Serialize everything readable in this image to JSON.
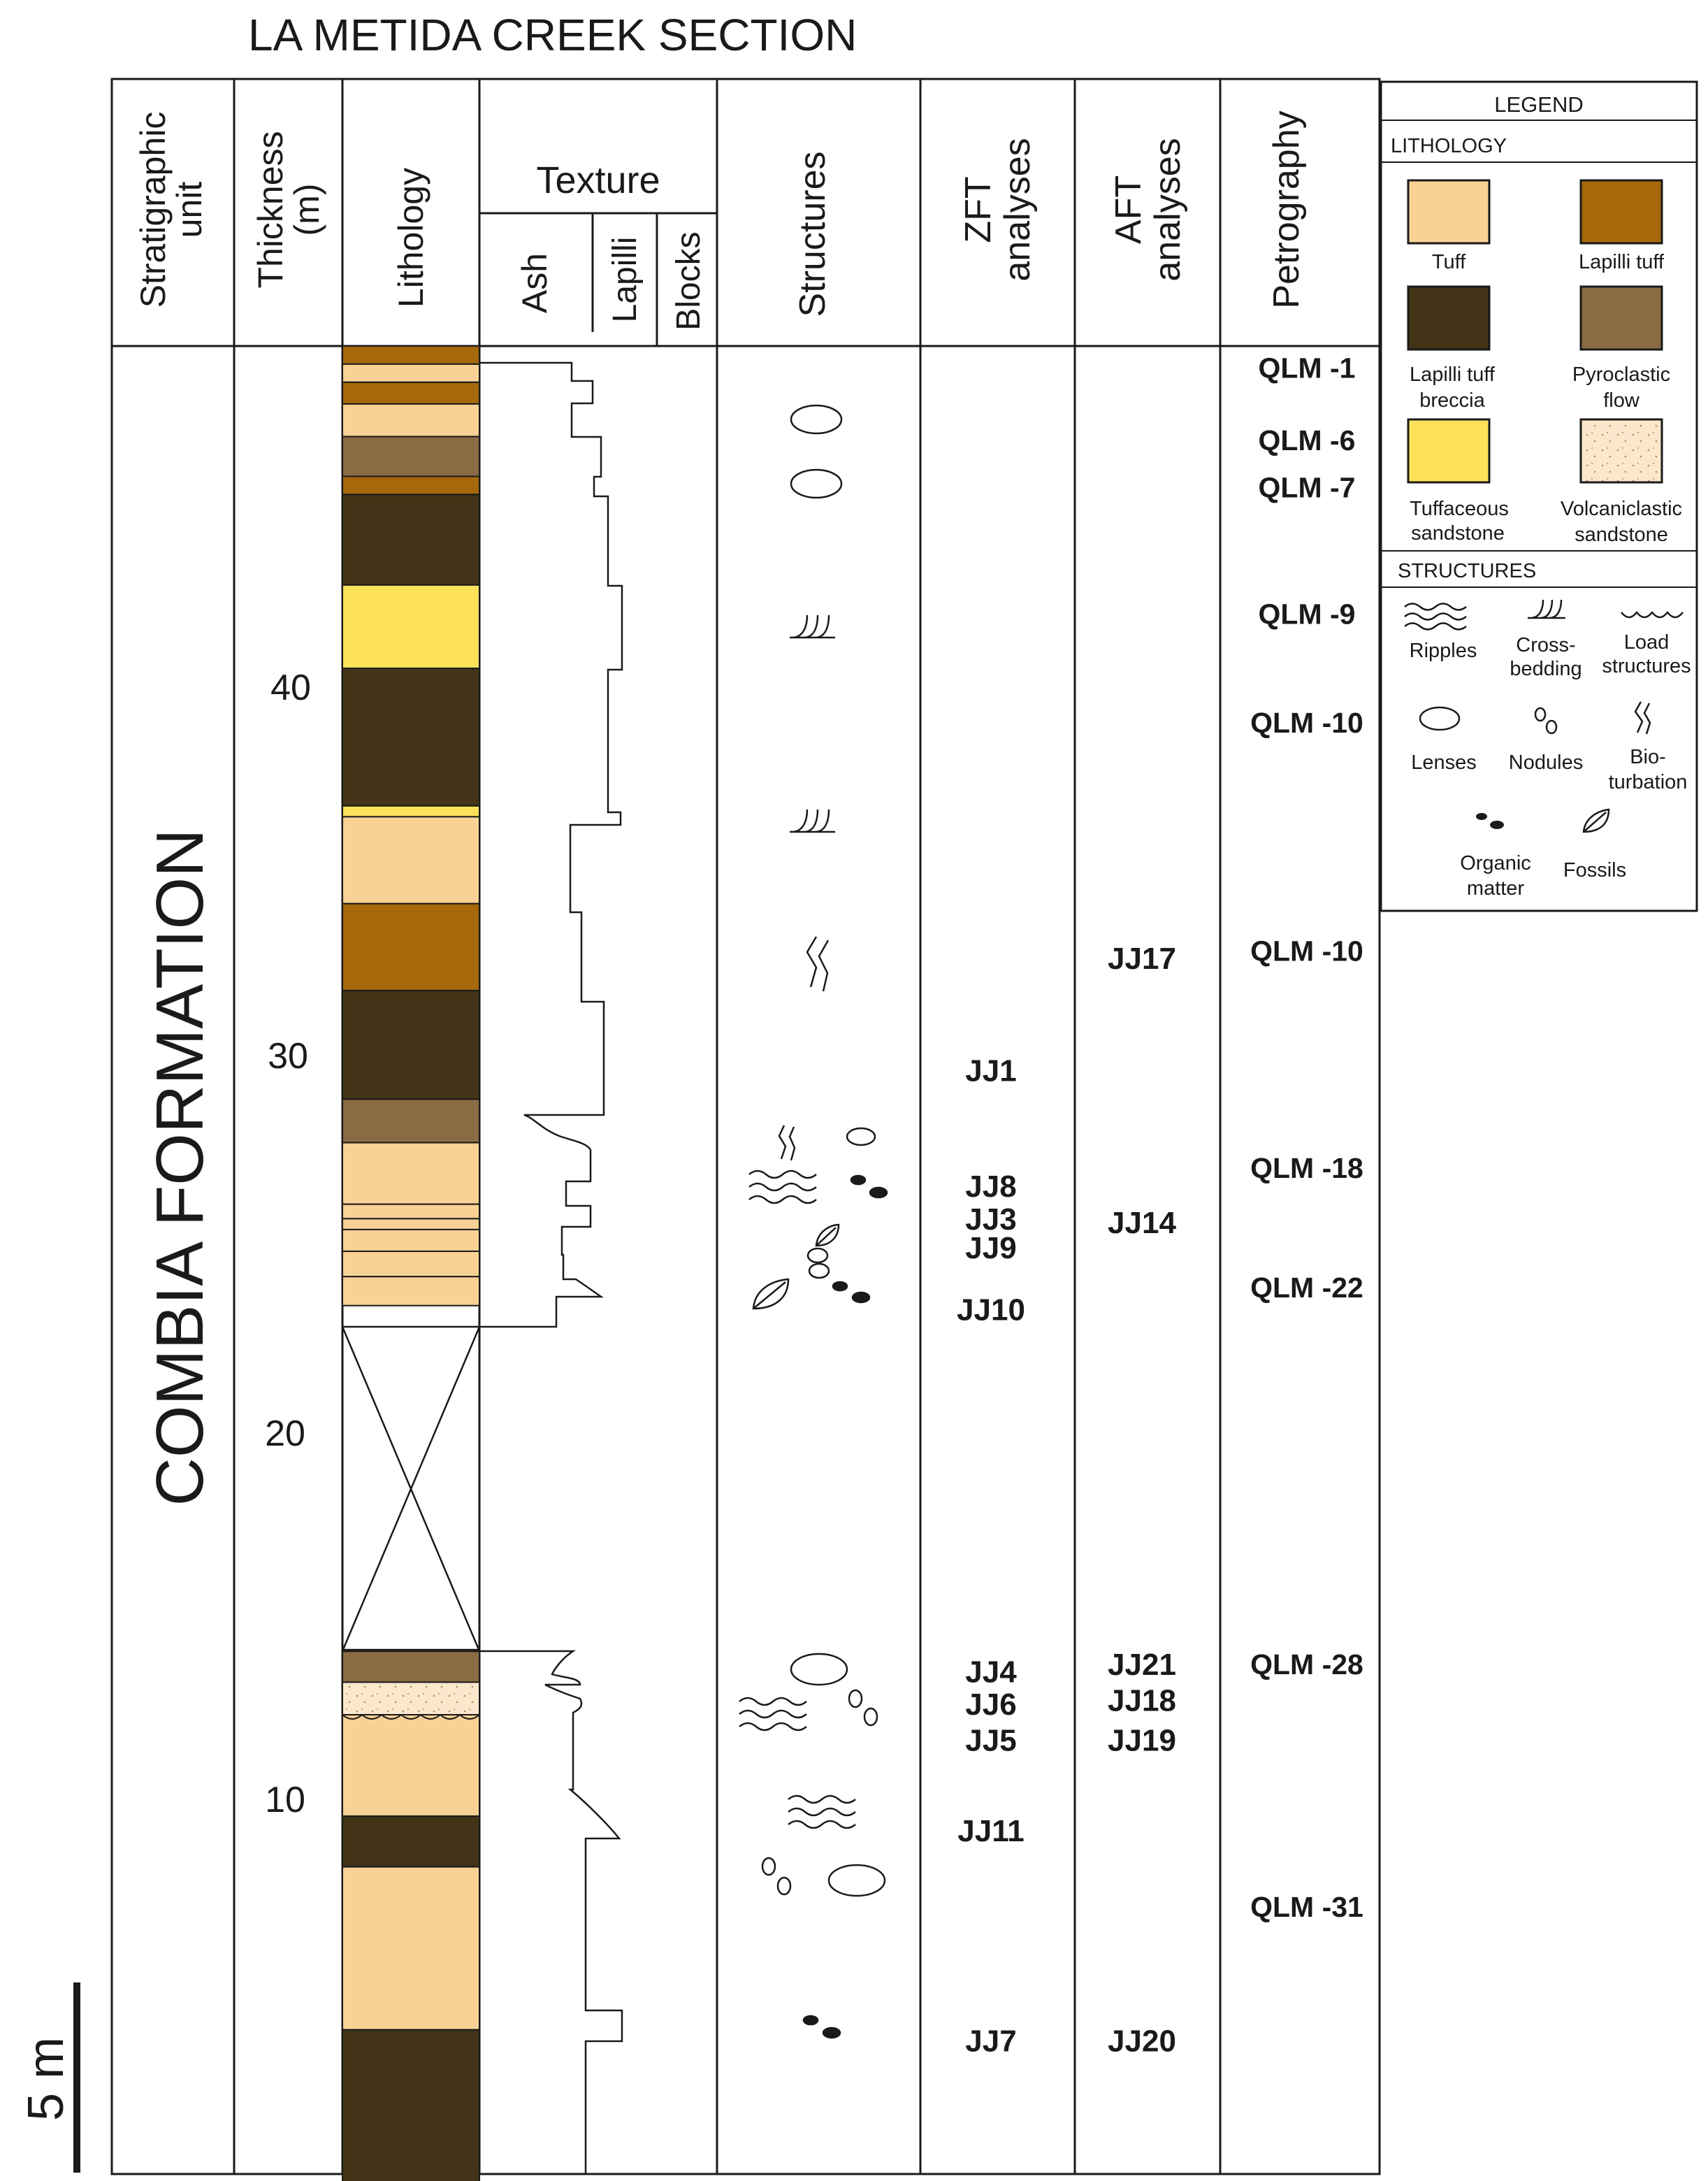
{
  "title": "LA  METIDA CREEK SECTION",
  "headers": {
    "stratigraphic_unit": [
      "Stratigraphic",
      "unit"
    ],
    "thickness": [
      "Thickness",
      "(m)"
    ],
    "lithology": "Lithology",
    "texture": "Texture",
    "ash": "Ash",
    "lapilli": "Lapilli",
    "blocks": "Blocks",
    "structures": "Structures",
    "zft": [
      "ZFT",
      "analyses"
    ],
    "aft": [
      "AFT",
      "analyses"
    ],
    "petrography": "Petrography"
  },
  "formation_name": "COMBIA FORMATION",
  "thickness_ticks": [
    "40",
    "30",
    "20",
    "10"
  ],
  "scale_bar_label": "5 m",
  "colors": {
    "tuff": "#f8d195",
    "lapilli_tuff": "#a6680a",
    "lapilli_tuff_breccia": "#433417",
    "pyroclastic_flow": "#8b6b43",
    "tuffaceous_sandstone": "#fde259",
    "volcaniclastic_sandstone": "#fbe7cb",
    "outline": "#1a1a1a"
  },
  "lithology_beds": [
    {
      "facies": "lapilli_tuff",
      "top_m": 50.9,
      "base_m": 50.4
    },
    {
      "facies": "tuff",
      "top_m": 50.4,
      "base_m": 49.9
    },
    {
      "facies": "lapilli_tuff",
      "top_m": 49.9,
      "base_m": 49.3
    },
    {
      "facies": "tuff",
      "top_m": 49.3,
      "base_m": 48.4
    },
    {
      "facies": "pyroclastic_flow",
      "top_m": 48.4,
      "base_m": 47.3
    },
    {
      "facies": "lapilli_tuff",
      "top_m": 47.3,
      "base_m": 46.8
    },
    {
      "facies": "lapilli_tuff_breccia",
      "top_m": 46.8,
      "base_m": 44.3
    },
    {
      "facies": "tuffaceous_sandstone",
      "top_m": 44.3,
      "base_m": 42.0
    },
    {
      "facies": "lapilli_tuff_breccia",
      "top_m": 42.0,
      "base_m": 38.2
    },
    {
      "facies": "tuffaceous_sandstone",
      "top_m": 38.2,
      "base_m": 37.9
    },
    {
      "facies": "tuff",
      "top_m": 37.9,
      "base_m": 35.5
    },
    {
      "facies": "lapilli_tuff",
      "top_m": 35.5,
      "base_m": 33.1
    },
    {
      "facies": "lapilli_tuff_breccia",
      "top_m": 33.1,
      "base_m": 30.1
    },
    {
      "facies": "pyroclastic_flow",
      "top_m": 30.1,
      "base_m": 28.9
    },
    {
      "facies": "tuff",
      "top_m": 28.9,
      "base_m": 27.2
    },
    {
      "facies": "tuff",
      "top_m": 27.2,
      "base_m": 26.8
    },
    {
      "facies": "tuff",
      "top_m": 26.8,
      "base_m": 26.5
    },
    {
      "facies": "tuff",
      "top_m": 26.5,
      "base_m": 25.9
    },
    {
      "facies": "tuff",
      "top_m": 25.9,
      "base_m": 25.2
    },
    {
      "facies": "tuff",
      "top_m": 25.2,
      "base_m": 24.4
    },
    {
      "facies": "covered",
      "top_m": 24.4,
      "base_m": 14.9
    },
    {
      "facies": "pyroclastic_flow",
      "top_m": 14.9,
      "base_m": 14.0
    },
    {
      "facies": "volcaniclastic_sandstone",
      "top_m": 14.0,
      "base_m": 13.1
    },
    {
      "facies": "tuff",
      "top_m": 13.1,
      "base_m": 10.3
    },
    {
      "facies": "lapilli_tuff_breccia",
      "top_m": 10.3,
      "base_m": 8.9
    },
    {
      "facies": "tuff",
      "top_m": 8.9,
      "base_m": 4.4
    },
    {
      "facies": "lapilli_tuff_breccia",
      "top_m": 4.4,
      "base_m": 0
    }
  ],
  "structures_column": [
    {
      "type": "lens",
      "m": 48.6
    },
    {
      "type": "lens",
      "m": 46.9
    },
    {
      "type": "cross-bedding",
      "m": 43.1
    },
    {
      "type": "cross-bedding",
      "m": 37.6
    },
    {
      "type": "bioturbation",
      "m": 34.3
    },
    {
      "type": "bioturbation",
      "m": 28.8
    },
    {
      "type": "lens",
      "m": 28.8
    },
    {
      "type": "ripples",
      "m": 28.0
    },
    {
      "type": "organic-matter",
      "m": 27.9
    },
    {
      "type": "fossil",
      "m": 26.5
    },
    {
      "type": "nodules",
      "m": 25.9
    },
    {
      "type": "fossil",
      "m": 25.1
    },
    {
      "type": "organic-matter",
      "m": 25.3
    },
    {
      "type": "lens",
      "m": 14.5
    },
    {
      "type": "ripples",
      "m": 13.1
    },
    {
      "type": "nodules",
      "m": 12.9
    },
    {
      "type": "ripples",
      "m": 10.2
    },
    {
      "type": "nodules",
      "m": 8.3
    },
    {
      "type": "lens",
      "m": 8.2
    },
    {
      "type": "organic-matter",
      "m": 4.1
    }
  ],
  "zft_samples": [
    {
      "label": "JJ1",
      "m": 30.9
    },
    {
      "label": "JJ8",
      "m": 27.7
    },
    {
      "label": "JJ3",
      "m": 26.8
    },
    {
      "label": "JJ9",
      "m": 26.0
    },
    {
      "label": "JJ10",
      "m": 24.3
    },
    {
      "label": "JJ4",
      "m": 14.3
    },
    {
      "label": "JJ6",
      "m": 13.4
    },
    {
      "label": "JJ5",
      "m": 12.4
    },
    {
      "label": "JJ11",
      "m": 9.9
    },
    {
      "label": "JJ7",
      "m": 4.1
    }
  ],
  "aft_samples": [
    {
      "label": "JJ17",
      "m": 34.0
    },
    {
      "label": "JJ14",
      "m": 26.7
    },
    {
      "label": "JJ21",
      "m": 14.5
    },
    {
      "label": "JJ18",
      "m": 13.5
    },
    {
      "label": "JJ19",
      "m": 12.4
    },
    {
      "label": "JJ20",
      "m": 4.1
    }
  ],
  "petrography_samples": [
    {
      "label": "QLM -1",
      "m": 50.3
    },
    {
      "label": "QLM -6",
      "m": 48.3
    },
    {
      "label": "QLM -7",
      "m": 47.0
    },
    {
      "label": "QLM -9",
      "m": 43.5
    },
    {
      "label": "QLM -10",
      "m": 40.5
    },
    {
      "label": "QLM -10",
      "m": 34.2
    },
    {
      "label": "QLM -18",
      "m": 28.2
    },
    {
      "label": "QLM -22",
      "m": 24.9
    },
    {
      "label": "QLM -28",
      "m": 14.5
    },
    {
      "label": "QLM -31",
      "m": 7.8
    }
  ],
  "legend": {
    "title": "LEGEND",
    "lithology_heading": "LITHOLOGY",
    "lithology_items": [
      {
        "key": "tuff",
        "label": [
          "Tuff"
        ]
      },
      {
        "key": "lapilli_tuff",
        "label": [
          "Lapilli tuff"
        ]
      },
      {
        "key": "lapilli_tuff_breccia",
        "label": [
          "Lapilli tuff",
          "breccia"
        ]
      },
      {
        "key": "pyroclastic_flow",
        "label": [
          "Pyroclastic",
          "flow"
        ]
      },
      {
        "key": "tuffaceous_sandstone",
        "label": [
          "Tuffaceous",
          "sandstone"
        ]
      },
      {
        "key": "volcaniclastic_sandstone",
        "label": [
          "Volcaniclastic",
          "sandstone"
        ]
      }
    ],
    "structures_heading": "STRUCTURES",
    "structure_items": [
      {
        "icon": "ripples",
        "label": [
          "Ripples"
        ]
      },
      {
        "icon": "cross-bedding",
        "label": [
          "Cross-",
          "bedding"
        ]
      },
      {
        "icon": "load-structures",
        "label": [
          "Load",
          "structures"
        ]
      },
      {
        "icon": "lenses",
        "label": [
          "Lenses"
        ]
      },
      {
        "icon": "nodules",
        "label": [
          "Nodules"
        ]
      },
      {
        "icon": "bioturbation",
        "label": [
          "Bio-",
          "turbation"
        ]
      },
      {
        "icon": "organic-matter",
        "label": [
          "Organic",
          "matter"
        ]
      },
      {
        "icon": "fossils",
        "label": [
          "Fossils"
        ]
      }
    ]
  }
}
